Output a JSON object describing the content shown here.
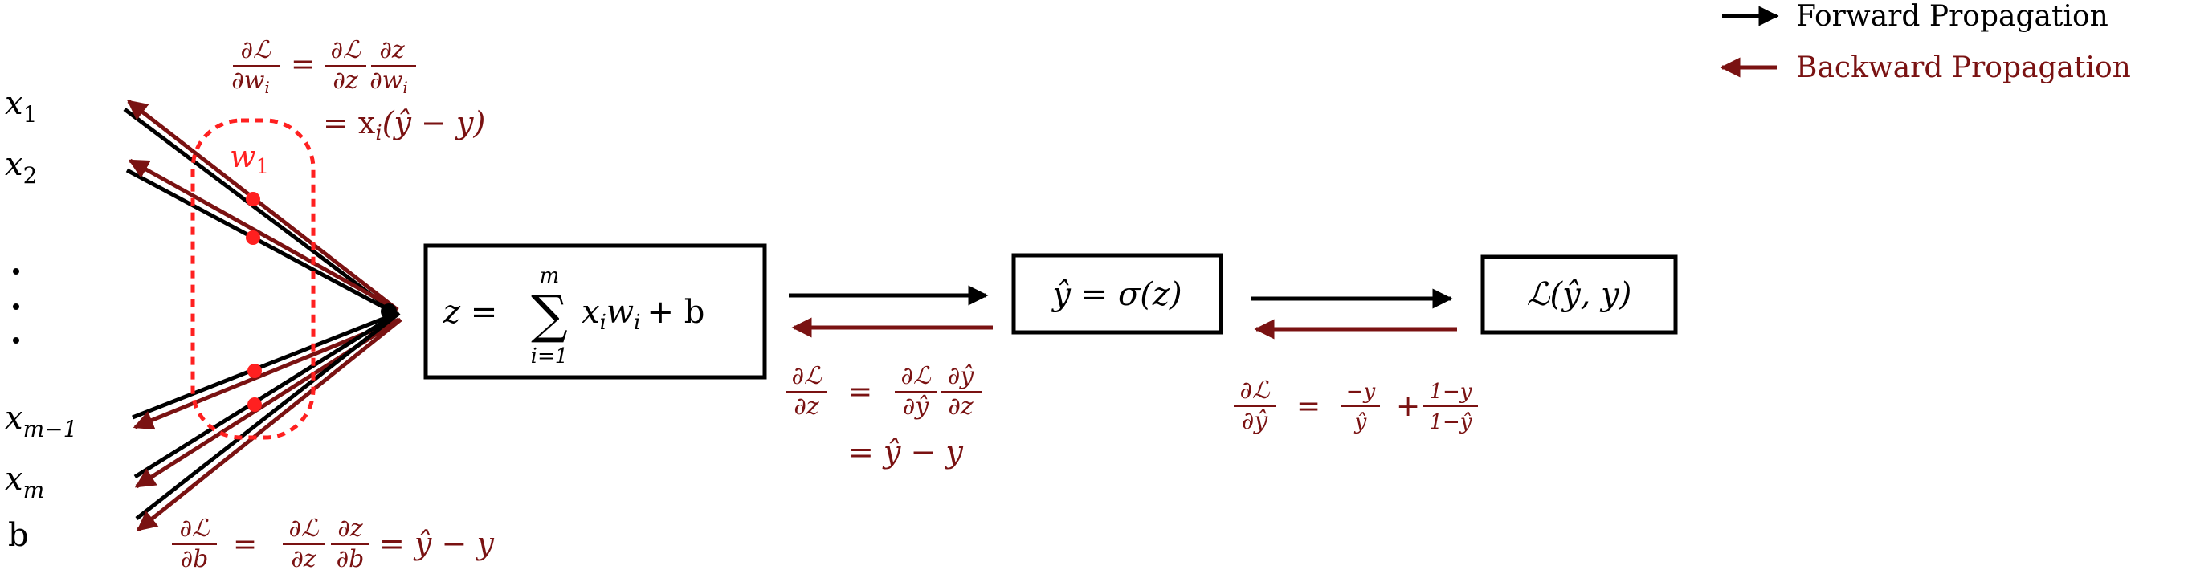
{
  "legend": {
    "forward_label": "Forward Propagation",
    "backward_label": "Backward Propagation"
  },
  "colors": {
    "forward": "#000000",
    "backward": "#7a1212",
    "weight_highlight": "#ff2020"
  },
  "inputs": {
    "x1": "x",
    "x1_sub": "1",
    "x2": "x",
    "x2_sub": "2",
    "xm1": "x",
    "xm1_sub": "m−1",
    "xm": "x",
    "xm_sub": "m",
    "bias": "b"
  },
  "weight_label": {
    "name": "w",
    "sub": "1"
  },
  "boxes": {
    "linear": {
      "lhs": "z =",
      "sum_top": "m",
      "sum_symbol": "∑",
      "sum_bottom": "i=1",
      "rhs_x": "x",
      "rhs_xsub": "i",
      "rhs_w": "w",
      "rhs_wsub": "i",
      "rhs_tail": "+ b"
    },
    "activation": {
      "text": "ŷ = σ(z)"
    },
    "loss": {
      "text": "ℒ(ŷ, y)"
    }
  },
  "gradients": {
    "dw": {
      "num1": "∂ℒ",
      "den1": "∂w",
      "den1_sub": "i",
      "eq": "=",
      "num2": "∂ℒ",
      "den2": "∂z",
      "num3": "∂z",
      "den3": "∂w",
      "den3_sub": "i",
      "line2": "= x",
      "line2_sub": "i",
      "line2_tail": "(ŷ − y)"
    },
    "db": {
      "num1": "∂ℒ",
      "den1": "∂b",
      "eq": "=",
      "num2": "∂ℒ",
      "den2": "∂z",
      "num3": "∂z",
      "den3": "∂b",
      "tail": "= ŷ − y"
    },
    "dz": {
      "num1": "∂ℒ",
      "den1": "∂z",
      "eq": "=",
      "num2": "∂ℒ",
      "den2": "∂ŷ",
      "num3": "∂ŷ",
      "den3": "∂z",
      "line2": "= ŷ − y"
    },
    "dyhat": {
      "num1": "∂ℒ",
      "den1": "∂ŷ",
      "eq": "=",
      "num2": "−y",
      "den2": "ŷ",
      "plus": "+",
      "num3": "1−y",
      "den3": "1−ŷ"
    }
  }
}
